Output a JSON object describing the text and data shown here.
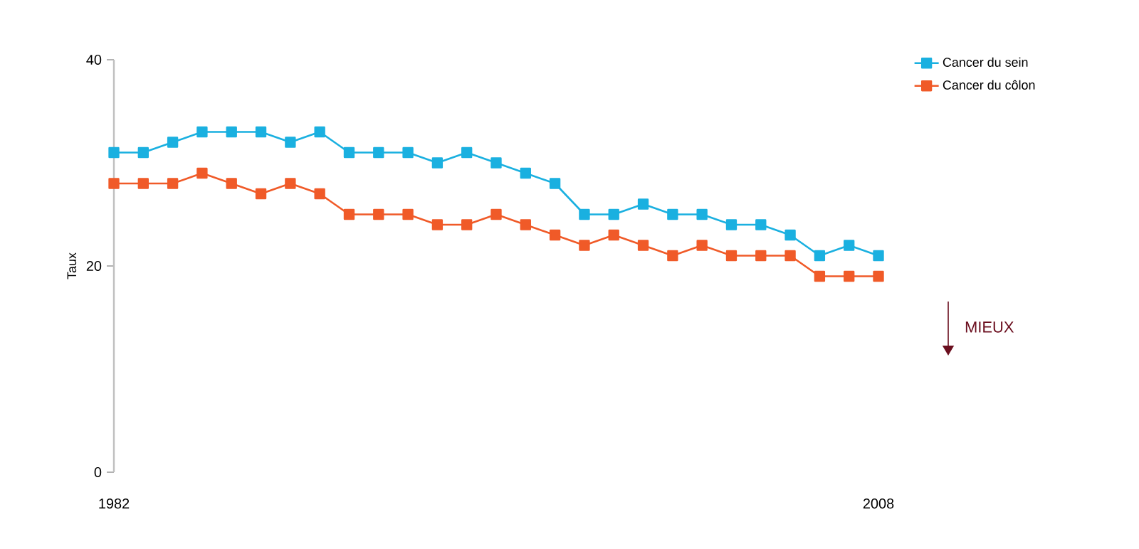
{
  "chart_data": {
    "type": "line",
    "ylabel": "Taux",
    "x": [
      1982,
      1983,
      1984,
      1985,
      1986,
      1987,
      1988,
      1989,
      1990,
      1991,
      1992,
      1993,
      1994,
      1995,
      1996,
      1997,
      1998,
      1999,
      2000,
      2001,
      2002,
      2003,
      2004,
      2005,
      2006,
      2007,
      2008
    ],
    "series": [
      {
        "name": "Cancer du sein",
        "color": "#1ab0e0",
        "values": [
          31,
          31,
          32,
          33,
          33,
          33,
          32,
          33,
          31,
          31,
          31,
          30,
          31,
          30,
          29,
          28,
          25,
          25,
          26,
          25,
          25,
          24,
          24,
          23,
          21,
          22,
          21
        ]
      },
      {
        "name": "Cancer du côlon",
        "color": "#f05a28",
        "values": [
          28,
          28,
          28,
          29,
          28,
          27,
          28,
          27,
          25,
          25,
          25,
          24,
          24,
          25,
          24,
          23,
          22,
          23,
          22,
          21,
          22,
          21,
          21,
          21,
          19,
          19,
          19
        ]
      }
    ],
    "xlim": [
      1982,
      2008
    ],
    "xticks": [
      1982,
      2008
    ],
    "ylim": [
      0,
      40
    ],
    "yticks": [
      0,
      20,
      40
    ],
    "grid": false,
    "legend": "top right",
    "marker": "square",
    "line_style": "solid",
    "annotations": [
      "MIEUX"
    ]
  }
}
